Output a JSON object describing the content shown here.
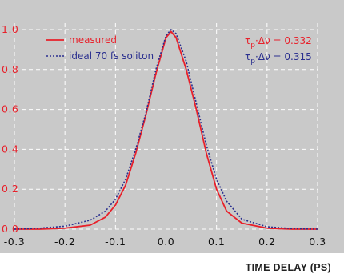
{
  "chart_data": {
    "type": "line",
    "xlabel": "TIME DELAY (PS)",
    "ylabel": "",
    "xlim": [
      -0.3,
      0.3
    ],
    "ylim": [
      0.0,
      1.0
    ],
    "x_ticks": [
      "-0.3",
      "-0.2",
      "-0.1",
      "0.0",
      "0.1",
      "0.2",
      "0.3"
    ],
    "y_ticks": [
      "0.0",
      "0.2",
      "0.4",
      "0.6",
      "0.8",
      "1.0"
    ],
    "grid": true,
    "legend_position": "top-left",
    "series": [
      {
        "name": "measured",
        "color": "#e8202a",
        "style": "solid",
        "x": [
          -0.3,
          -0.25,
          -0.2,
          -0.15,
          -0.12,
          -0.1,
          -0.08,
          -0.06,
          -0.04,
          -0.02,
          0.0,
          0.01,
          0.02,
          0.04,
          0.06,
          0.08,
          0.1,
          0.12,
          0.15,
          0.2,
          0.25,
          0.3
        ],
        "y": [
          0.0,
          0.0,
          0.005,
          0.02,
          0.06,
          0.12,
          0.22,
          0.38,
          0.57,
          0.78,
          0.96,
          0.99,
          0.96,
          0.8,
          0.6,
          0.38,
          0.2,
          0.09,
          0.03,
          0.005,
          0.0,
          0.0
        ]
      },
      {
        "name": "ideal 70 fs soliton",
        "color": "#2a2f8f",
        "style": "dotted",
        "x": [
          -0.3,
          -0.25,
          -0.2,
          -0.15,
          -0.12,
          -0.1,
          -0.08,
          -0.06,
          -0.04,
          -0.02,
          0.0,
          0.01,
          0.02,
          0.04,
          0.06,
          0.08,
          0.1,
          0.12,
          0.15,
          0.2,
          0.25,
          0.3
        ],
        "y": [
          0.0,
          0.005,
          0.015,
          0.045,
          0.09,
          0.15,
          0.25,
          0.4,
          0.58,
          0.8,
          0.97,
          1.0,
          0.98,
          0.84,
          0.63,
          0.42,
          0.25,
          0.14,
          0.05,
          0.012,
          0.003,
          0.0
        ]
      }
    ],
    "annotations": [
      {
        "text_main": "τ",
        "sub": "p",
        "text_rest": "·Δν = 0.332",
        "color": "#e8202a"
      },
      {
        "text_main": "τ",
        "sub": "p",
        "text_rest": "·Δν = 0.315",
        "color": "#2a2f8f"
      }
    ],
    "colors": {
      "plot_background": "#c9c9c9",
      "grid": "#ffffff",
      "tick_text": "#e8202a"
    }
  }
}
